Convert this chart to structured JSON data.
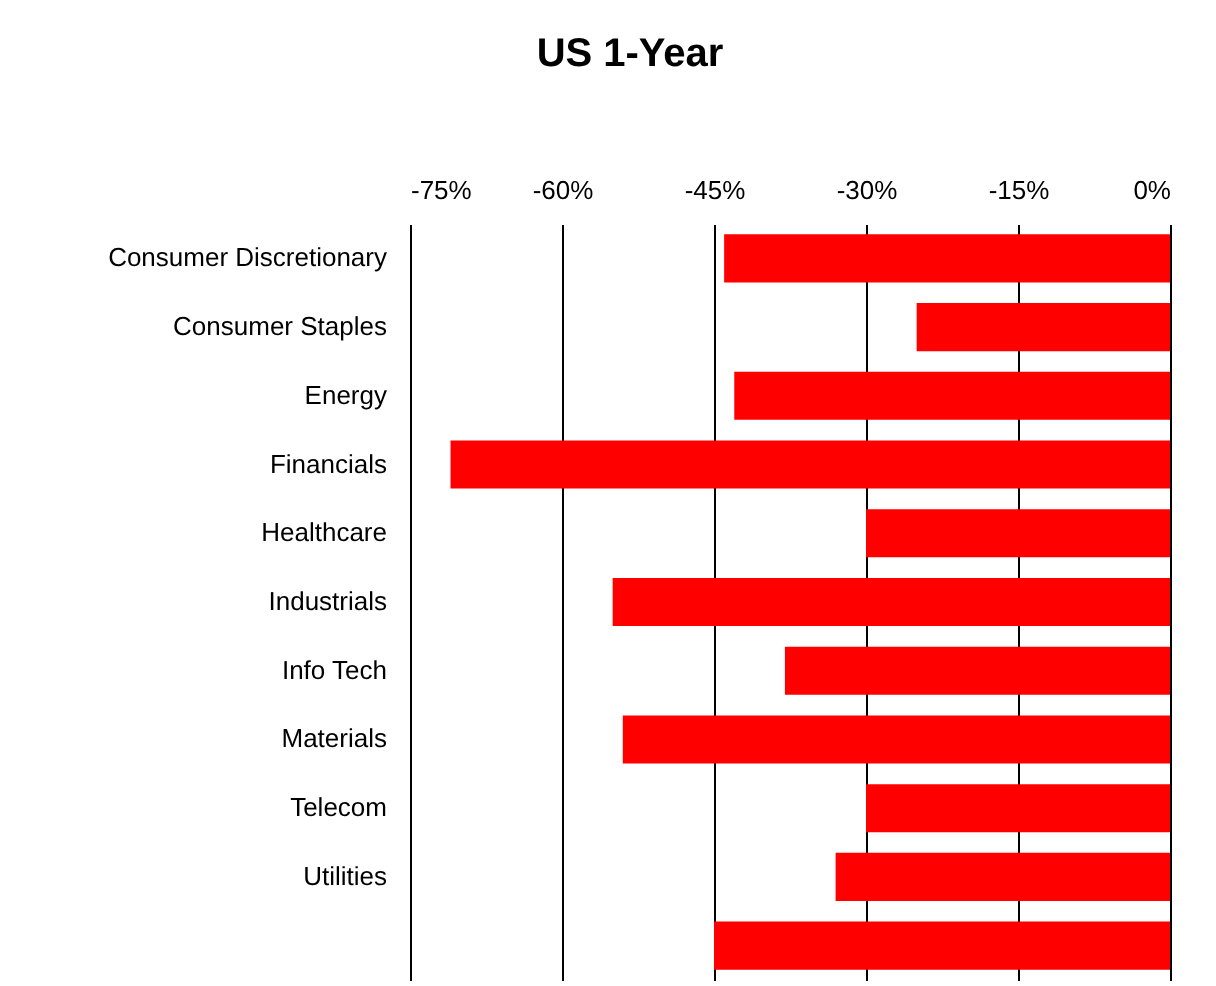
{
  "chart_data": {
    "type": "bar",
    "orientation": "horizontal",
    "title": "US 1-Year",
    "categories": [
      "Consumer Discretionary",
      "Consumer Staples",
      "Energy",
      "Financials",
      "Healthcare",
      "Industrials",
      "Info Tech",
      "Materials",
      "Telecom",
      "Utilities",
      null
    ],
    "values": [
      -44,
      -25,
      -43,
      -71,
      -30,
      -55,
      -38,
      -54,
      -30,
      -33,
      -45
    ],
    "color": "#ff0000",
    "xlim": [
      -75,
      0
    ],
    "xticks": [
      {
        "value": -75,
        "label": "-75%"
      },
      {
        "value": -60,
        "label": "-60%"
      },
      {
        "value": -45,
        "label": "-45%"
      },
      {
        "value": -30,
        "label": "-30%"
      },
      {
        "value": -15,
        "label": "-15%"
      },
      {
        "value": 0,
        "label": "0%"
      }
    ],
    "grid": "x"
  }
}
